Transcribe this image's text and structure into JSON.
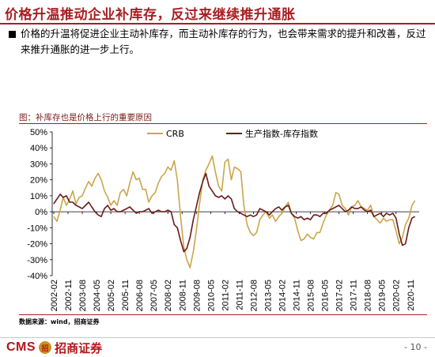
{
  "slide": {
    "title": "价格升温推动企业补库存，反过来继续推升通胀",
    "body": "价格的升温将促进企业主动补库存，而主动补库存的行为，也会带来需求的提升和改善，反过来推升通胀的进一步上行。",
    "chart_caption": "图：补库存也是价格上行的重要原因",
    "source": "数据来源：wind，招商证券",
    "logo_text": "CMS",
    "logo_mark_text": "招",
    "logo_cn": "招商证券",
    "page_number": "- 10 -",
    "accent_color": "#a81e22"
  },
  "chart_data": {
    "type": "line",
    "ylim": [
      -40,
      50
    ],
    "yticks": [
      "50%",
      "40%",
      "30%",
      "20%",
      "10%",
      "0%",
      "-10%",
      "-20%",
      "-30%",
      "-40%"
    ],
    "ytick_values": [
      50,
      40,
      30,
      20,
      10,
      0,
      -10,
      -20,
      -30,
      -40
    ],
    "xlim": [
      2002.0,
      2021.3
    ],
    "xtick_labels": [
      "2002-02",
      "2002-11",
      "2003-08",
      "2004-05",
      "2005-02",
      "2005-11",
      "2006-08",
      "2007-05",
      "2008-02",
      "2008-11",
      "2009-08",
      "2010-05",
      "2011-02",
      "2011-11",
      "2012-08",
      "2013-05",
      "2014-02",
      "2014-11",
      "2015-08",
      "2016-05",
      "2017-02",
      "2017-11",
      "2018-08",
      "2019-05",
      "2020-02",
      "2020-11"
    ],
    "xtick_values": [
      2002.083,
      2002.833,
      2003.583,
      2004.333,
      2005.083,
      2005.833,
      2006.583,
      2007.333,
      2008.083,
      2008.833,
      2009.583,
      2010.333,
      2011.083,
      2011.833,
      2012.583,
      2013.333,
      2014.083,
      2014.833,
      2015.583,
      2016.333,
      2017.083,
      2017.833,
      2018.583,
      2019.333,
      2020.083,
      2020.833
    ],
    "series": [
      {
        "name": "CRB",
        "color": "#c9a64a",
        "points": [
          [
            2002.08,
            -3
          ],
          [
            2002.25,
            -6
          ],
          [
            2002.42,
            1
          ],
          [
            2002.58,
            9
          ],
          [
            2002.75,
            4
          ],
          [
            2002.92,
            8
          ],
          [
            2003.08,
            13
          ],
          [
            2003.25,
            5
          ],
          [
            2003.42,
            9
          ],
          [
            2003.58,
            10
          ],
          [
            2003.75,
            15
          ],
          [
            2003.92,
            19
          ],
          [
            2004.08,
            16
          ],
          [
            2004.25,
            21
          ],
          [
            2004.42,
            24
          ],
          [
            2004.58,
            20
          ],
          [
            2004.75,
            13
          ],
          [
            2004.92,
            9
          ],
          [
            2005.08,
            4
          ],
          [
            2005.25,
            7
          ],
          [
            2005.42,
            4
          ],
          [
            2005.58,
            12
          ],
          [
            2005.75,
            14
          ],
          [
            2005.92,
            10
          ],
          [
            2006.08,
            18
          ],
          [
            2006.25,
            25
          ],
          [
            2006.42,
            20
          ],
          [
            2006.58,
            21
          ],
          [
            2006.75,
            14
          ],
          [
            2006.92,
            14
          ],
          [
            2007.08,
            6
          ],
          [
            2007.25,
            10
          ],
          [
            2007.42,
            12
          ],
          [
            2007.58,
            18
          ],
          [
            2007.75,
            22
          ],
          [
            2007.92,
            24
          ],
          [
            2008.08,
            28
          ],
          [
            2008.25,
            26
          ],
          [
            2008.42,
            32
          ],
          [
            2008.58,
            20
          ],
          [
            2008.75,
            -3
          ],
          [
            2008.92,
            -22
          ],
          [
            2009.08,
            -30
          ],
          [
            2009.25,
            -35
          ],
          [
            2009.42,
            -25
          ],
          [
            2009.58,
            -12
          ],
          [
            2009.75,
            5
          ],
          [
            2009.92,
            20
          ],
          [
            2010.08,
            26
          ],
          [
            2010.25,
            30
          ],
          [
            2010.42,
            35
          ],
          [
            2010.58,
            25
          ],
          [
            2010.75,
            16
          ],
          [
            2010.92,
            13
          ],
          [
            2011.08,
            31
          ],
          [
            2011.25,
            33
          ],
          [
            2011.42,
            20
          ],
          [
            2011.58,
            28
          ],
          [
            2011.75,
            27
          ],
          [
            2011.92,
            25
          ],
          [
            2012.08,
            4
          ],
          [
            2012.25,
            -8
          ],
          [
            2012.42,
            -13
          ],
          [
            2012.58,
            -15
          ],
          [
            2012.75,
            -13
          ],
          [
            2012.92,
            -5
          ],
          [
            2013.08,
            -2
          ],
          [
            2013.25,
            0
          ],
          [
            2013.42,
            -4
          ],
          [
            2013.58,
            -2
          ],
          [
            2013.75,
            -6
          ],
          [
            2013.92,
            -3
          ],
          [
            2014.08,
            -1
          ],
          [
            2014.25,
            3
          ],
          [
            2014.42,
            6
          ],
          [
            2014.58,
            -1
          ],
          [
            2014.75,
            -4
          ],
          [
            2014.92,
            -12
          ],
          [
            2015.08,
            -18
          ],
          [
            2015.25,
            -17
          ],
          [
            2015.42,
            -14
          ],
          [
            2015.58,
            -16
          ],
          [
            2015.75,
            -17
          ],
          [
            2015.92,
            -13
          ],
          [
            2016.08,
            -13
          ],
          [
            2016.25,
            -7
          ],
          [
            2016.42,
            -2
          ],
          [
            2016.58,
            1
          ],
          [
            2016.75,
            4
          ],
          [
            2016.92,
            12
          ],
          [
            2017.08,
            11
          ],
          [
            2017.25,
            4
          ],
          [
            2017.42,
            2
          ],
          [
            2017.58,
            -2
          ],
          [
            2017.75,
            3
          ],
          [
            2017.92,
            4
          ],
          [
            2018.08,
            7
          ],
          [
            2018.25,
            3
          ],
          [
            2018.42,
            2
          ],
          [
            2018.58,
            1
          ],
          [
            2018.75,
            4
          ],
          [
            2018.92,
            -3
          ],
          [
            2019.08,
            -5
          ],
          [
            2019.25,
            -7
          ],
          [
            2019.42,
            -4
          ],
          [
            2019.58,
            -6
          ],
          [
            2019.75,
            -5
          ],
          [
            2019.92,
            -5
          ],
          [
            2020.08,
            -12
          ],
          [
            2020.25,
            -20
          ],
          [
            2020.42,
            -16
          ],
          [
            2020.58,
            -8
          ],
          [
            2020.75,
            -4
          ],
          [
            2020.92,
            4
          ],
          [
            2021.08,
            7
          ]
        ]
      },
      {
        "name": "生产指数-库存指数",
        "color": "#6b1a1a",
        "points": [
          [
            2002.08,
            5
          ],
          [
            2002.25,
            8
          ],
          [
            2002.42,
            11
          ],
          [
            2002.58,
            9
          ],
          [
            2002.75,
            10
          ],
          [
            2002.92,
            6
          ],
          [
            2003.08,
            6
          ],
          [
            2003.25,
            4
          ],
          [
            2003.42,
            3
          ],
          [
            2003.58,
            2
          ],
          [
            2003.75,
            4
          ],
          [
            2003.92,
            6
          ],
          [
            2004.08,
            3
          ],
          [
            2004.25,
            0
          ],
          [
            2004.42,
            -2
          ],
          [
            2004.58,
            -3
          ],
          [
            2004.75,
            2
          ],
          [
            2004.92,
            4
          ],
          [
            2005.08,
            1
          ],
          [
            2005.25,
            2
          ],
          [
            2005.42,
            0
          ],
          [
            2005.58,
            0
          ],
          [
            2005.75,
            1
          ],
          [
            2005.92,
            2
          ],
          [
            2006.08,
            3
          ],
          [
            2006.25,
            1
          ],
          [
            2006.42,
            -1
          ],
          [
            2006.58,
            0
          ],
          [
            2006.75,
            0
          ],
          [
            2006.92,
            1
          ],
          [
            2007.08,
            2
          ],
          [
            2007.25,
            -1
          ],
          [
            2007.42,
            0
          ],
          [
            2007.58,
            1
          ],
          [
            2007.75,
            0
          ],
          [
            2007.92,
            0
          ],
          [
            2008.08,
            1
          ],
          [
            2008.25,
            0
          ],
          [
            2008.42,
            -8
          ],
          [
            2008.58,
            -10
          ],
          [
            2008.75,
            -18
          ],
          [
            2008.92,
            -25
          ],
          [
            2009.08,
            -23
          ],
          [
            2009.25,
            -16
          ],
          [
            2009.42,
            -5
          ],
          [
            2009.58,
            3
          ],
          [
            2009.75,
            12
          ],
          [
            2009.92,
            19
          ],
          [
            2010.08,
            24
          ],
          [
            2010.25,
            16
          ],
          [
            2010.42,
            13
          ],
          [
            2010.58,
            10
          ],
          [
            2010.75,
            9
          ],
          [
            2010.92,
            10
          ],
          [
            2011.08,
            8
          ],
          [
            2011.25,
            10
          ],
          [
            2011.42,
            8
          ],
          [
            2011.58,
            2
          ],
          [
            2011.75,
            0
          ],
          [
            2011.92,
            -1
          ],
          [
            2012.08,
            -2
          ],
          [
            2012.25,
            -3
          ],
          [
            2012.42,
            -2
          ],
          [
            2012.58,
            -3
          ],
          [
            2012.75,
            -2
          ],
          [
            2012.92,
            2
          ],
          [
            2013.08,
            1
          ],
          [
            2013.25,
            0
          ],
          [
            2013.42,
            -2
          ],
          [
            2013.58,
            0
          ],
          [
            2013.75,
            2
          ],
          [
            2013.92,
            3
          ],
          [
            2014.08,
            1
          ],
          [
            2014.25,
            3
          ],
          [
            2014.42,
            4
          ],
          [
            2014.58,
            -1
          ],
          [
            2014.75,
            -3
          ],
          [
            2014.92,
            -4
          ],
          [
            2015.08,
            -3
          ],
          [
            2015.25,
            -5
          ],
          [
            2015.42,
            -4
          ],
          [
            2015.58,
            -5
          ],
          [
            2015.75,
            -2
          ],
          [
            2015.92,
            -2
          ],
          [
            2016.08,
            -3
          ],
          [
            2016.25,
            -1
          ],
          [
            2016.42,
            -1
          ],
          [
            2016.58,
            1
          ],
          [
            2016.75,
            2
          ],
          [
            2016.92,
            3
          ],
          [
            2017.08,
            4
          ],
          [
            2017.25,
            2
          ],
          [
            2017.42,
            0
          ],
          [
            2017.58,
            1
          ],
          [
            2017.75,
            3
          ],
          [
            2017.92,
            2
          ],
          [
            2018.08,
            2
          ],
          [
            2018.25,
            3
          ],
          [
            2018.42,
            1
          ],
          [
            2018.58,
            0
          ],
          [
            2018.75,
            1
          ],
          [
            2018.92,
            -3
          ],
          [
            2019.08,
            -2
          ],
          [
            2019.25,
            -1
          ],
          [
            2019.42,
            -3
          ],
          [
            2019.58,
            -1
          ],
          [
            2019.75,
            -2
          ],
          [
            2019.92,
            -1
          ],
          [
            2020.08,
            -4
          ],
          [
            2020.25,
            -14
          ],
          [
            2020.42,
            -21
          ],
          [
            2020.58,
            -20
          ],
          [
            2020.75,
            -10
          ],
          [
            2020.92,
            -4
          ],
          [
            2021.08,
            -3
          ]
        ]
      }
    ]
  }
}
